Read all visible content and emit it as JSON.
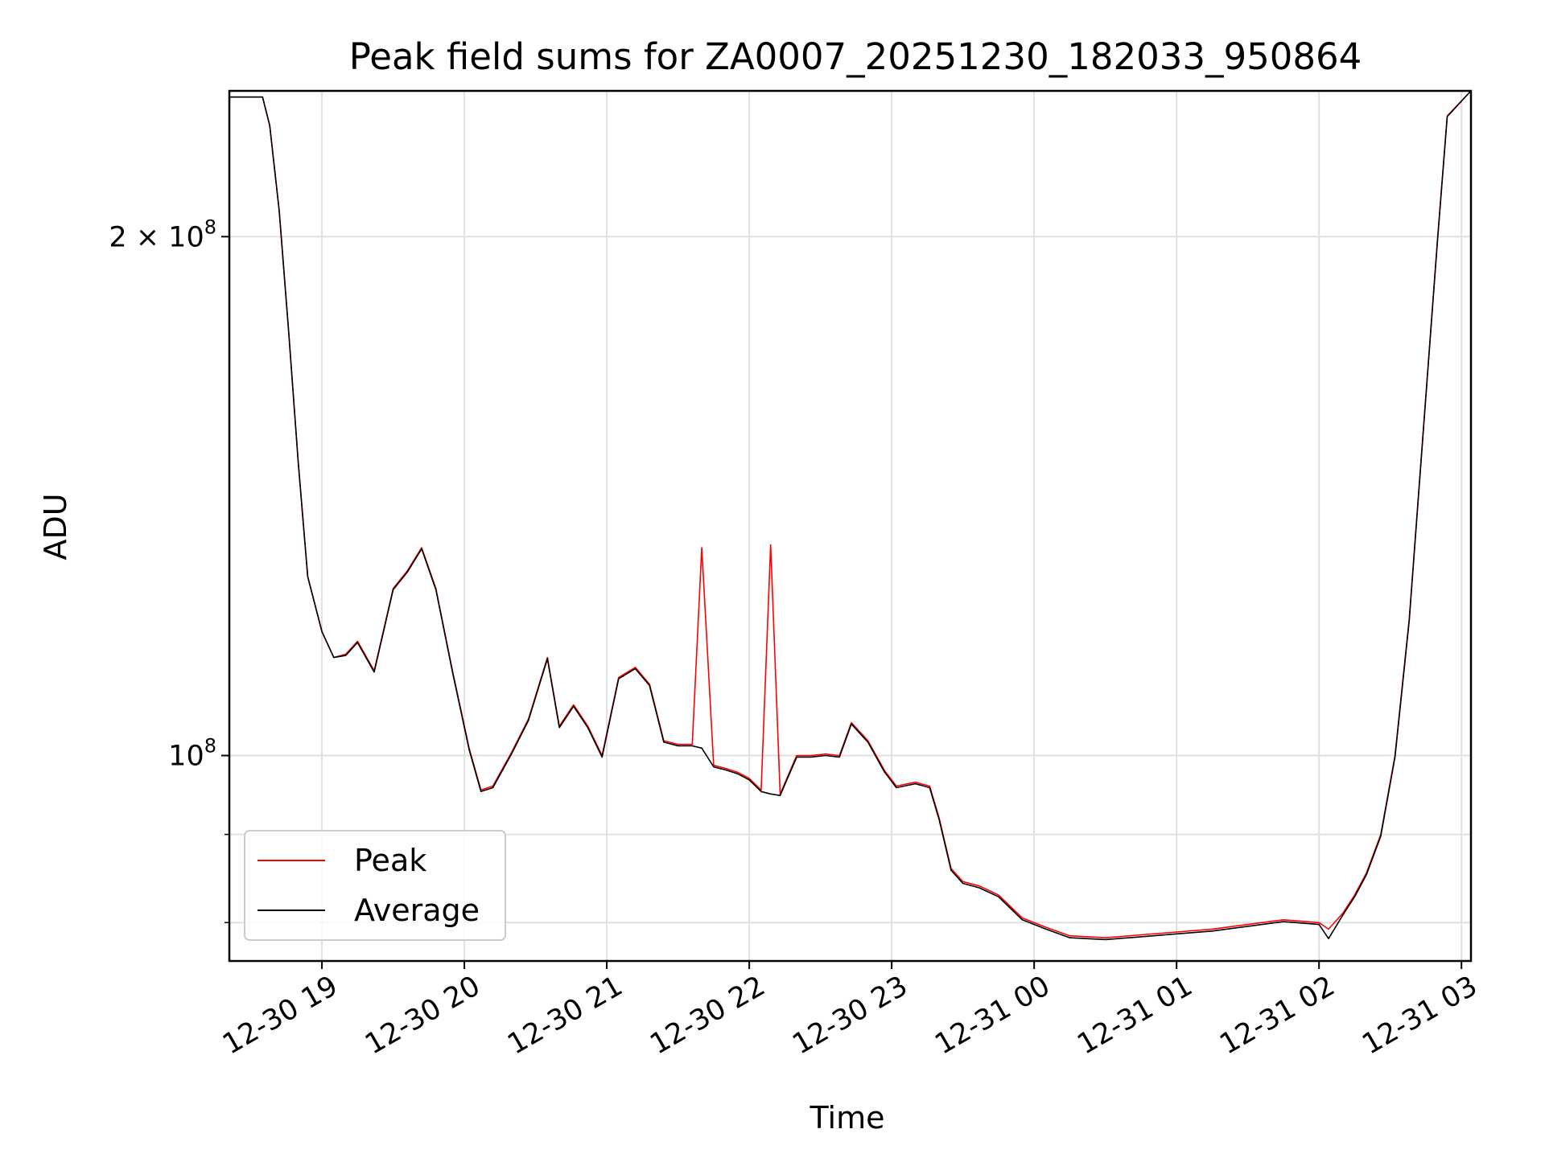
{
  "chart_data": {
    "type": "line",
    "title": "Peak field sums for ZA0007_20251230_182033_950864",
    "xlabel": "Time",
    "ylabel": "ADU",
    "x_ticks": [
      "12-30 19",
      "12-30 20",
      "12-30 21",
      "12-30 22",
      "12-30 23",
      "12-31 00",
      "12-31 01",
      "12-31 02",
      "12-31 03"
    ],
    "y_ticks": [
      {
        "value": 100000000,
        "base": "10",
        "exp": "8",
        "prefix": ""
      },
      {
        "value": 200000000,
        "base": "10",
        "exp": "8",
        "prefix": "2 × "
      }
    ],
    "y_minor_ticks": [
      80000000,
      90000000
    ],
    "yscale": "log",
    "xlim": [
      "2025-12-30 18:21",
      "2025-12-31 03:04"
    ],
    "ylim": [
      76000000,
      243000000
    ],
    "grid": true,
    "legend_position": "lower-left",
    "x": [
      "2025-12-30 18:21",
      "2025-12-30 18:35",
      "2025-12-30 18:38",
      "2025-12-30 18:42",
      "2025-12-30 18:46",
      "2025-12-30 18:50",
      "2025-12-30 18:54",
      "2025-12-30 19:00",
      "2025-12-30 19:05",
      "2025-12-30 19:10",
      "2025-12-30 19:15",
      "2025-12-30 19:22",
      "2025-12-30 19:30",
      "2025-12-30 19:36",
      "2025-12-30 19:42",
      "2025-12-30 19:48",
      "2025-12-30 19:55",
      "2025-12-30 20:02",
      "2025-12-30 20:07",
      "2025-12-30 20:12",
      "2025-12-30 20:20",
      "2025-12-30 20:27",
      "2025-12-30 20:35",
      "2025-12-30 20:40",
      "2025-12-30 20:46",
      "2025-12-30 20:52",
      "2025-12-30 20:58",
      "2025-12-30 21:05",
      "2025-12-30 21:12",
      "2025-12-30 21:18",
      "2025-12-30 21:24",
      "2025-12-30 21:30",
      "2025-12-30 21:36",
      "2025-12-30 21:40",
      "2025-12-30 21:45",
      "2025-12-30 21:50",
      "2025-12-30 21:55",
      "2025-12-30 22:00",
      "2025-12-30 22:05",
      "2025-12-30 22:09",
      "2025-12-30 22:13",
      "2025-12-30 22:20",
      "2025-12-30 22:26",
      "2025-12-30 22:32",
      "2025-12-30 22:38",
      "2025-12-30 22:43",
      "2025-12-30 22:50",
      "2025-12-30 22:57",
      "2025-12-30 23:02",
      "2025-12-30 23:10",
      "2025-12-30 23:16",
      "2025-12-30 23:20",
      "2025-12-30 23:25",
      "2025-12-30 23:30",
      "2025-12-30 23:37",
      "2025-12-30 23:45",
      "2025-12-30 23:53",
      "2025-12-30 23:55",
      "2025-12-31 00:05",
      "2025-12-31 00:15",
      "2025-12-31 00:30",
      "2025-12-31 00:45",
      "2025-12-31 01:00",
      "2025-12-31 01:15",
      "2025-12-31 01:30",
      "2025-12-31 01:45",
      "2025-12-31 02:00",
      "2025-12-31 02:04",
      "2025-12-31 02:10",
      "2025-12-31 02:15",
      "2025-12-31 02:20",
      "2025-12-31 02:26",
      "2025-12-31 02:32",
      "2025-12-31 02:38",
      "2025-12-31 02:44",
      "2025-12-31 02:50",
      "2025-12-31 02:54",
      "2025-12-31 03:04"
    ],
    "series": [
      {
        "name": "Peak",
        "color": "#ff0000",
        "values": [
          241000000,
          241000000,
          232000000,
          207000000,
          176000000,
          148000000,
          127000000,
          118000000,
          114000000,
          114500000,
          116500000,
          112000000,
          125000000,
          128000000,
          132000000,
          125000000,
          112000000,
          101000000,
          95500000,
          96000000,
          100500000,
          105000000,
          114000000,
          104000000,
          107000000,
          104000000,
          100000000,
          111000000,
          112500000,
          110000000,
          102000000,
          101500000,
          101500000,
          132000000,
          98700000,
          98300000,
          97800000,
          97000000,
          95500000,
          132500000,
          95000000,
          100000000,
          100000000,
          100200000,
          100000000,
          104500000,
          102000000,
          98000000,
          96000000,
          96500000,
          96000000,
          92000000,
          86000000,
          84500000,
          84000000,
          83000000,
          81000000,
          80500000,
          79500000,
          78600000,
          78400000,
          78700000,
          79000000,
          79300000,
          79800000,
          80300000,
          80000000,
          79300000,
          81000000,
          83000000,
          85500000,
          90000000,
          100000000,
          120000000,
          155000000,
          200000000,
          235000000,
          243000000
        ]
      },
      {
        "name": "Average",
        "color": "#000000",
        "values": [
          241000000,
          241000000,
          232000000,
          207000000,
          176000000,
          148000000,
          127000000,
          118000000,
          114000000,
          114300000,
          116300000,
          111800000,
          124800000,
          127800000,
          131800000,
          124800000,
          111800000,
          100800000,
          95300000,
          95800000,
          100300000,
          104800000,
          113800000,
          103800000,
          106800000,
          103800000,
          99800000,
          110800000,
          112300000,
          109800000,
          101800000,
          101300000,
          101300000,
          101000000,
          98500000,
          98100000,
          97600000,
          96800000,
          95300000,
          95000000,
          94800000,
          99800000,
          99800000,
          100000000,
          99800000,
          104300000,
          101800000,
          97800000,
          95800000,
          96300000,
          95800000,
          91800000,
          85800000,
          84300000,
          83800000,
          82800000,
          80800000,
          80300000,
          79300000,
          78400000,
          78200000,
          78500000,
          78800000,
          79100000,
          79600000,
          80100000,
          79800000,
          78300000,
          80800000,
          82800000,
          85300000,
          89800000,
          99800000,
          119800000,
          154800000,
          199800000,
          234800000,
          243000000
        ]
      }
    ]
  }
}
